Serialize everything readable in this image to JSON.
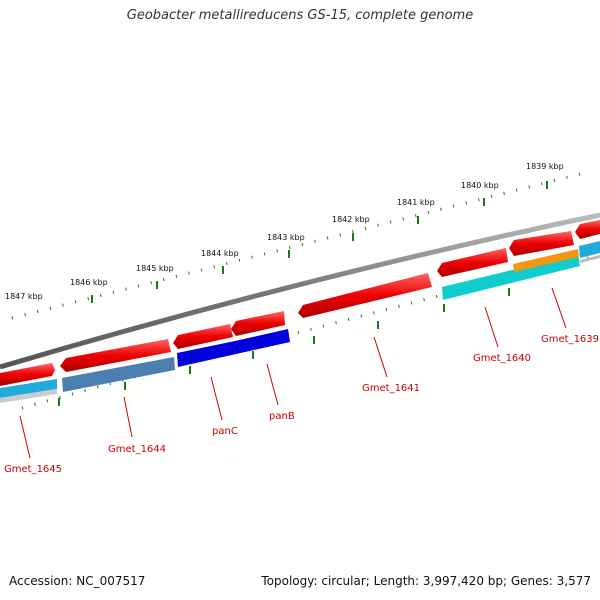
{
  "title": "Geobacter metallireducens GS-15, complete genome",
  "footer": {
    "accession": "Accession: NC_007517",
    "topology": "Topology: circular; Length: 3,997,420 bp; Genes: 3,577"
  },
  "kbp_labels": [
    "1847 kbp",
    "1846 kbp",
    "1845 kbp",
    "1844 kbp",
    "1843 kbp",
    "1842 kbp",
    "1841 kbp",
    "1840 kbp",
    "1839 kbp"
  ],
  "gene_labels": [
    "Gmet_1645",
    "Gmet_1644",
    "panC",
    "panB",
    "Gmet_1641",
    "Gmet_1640",
    "Gmet_1639"
  ],
  "colors": {
    "cds": "#ee0000",
    "backbone": "#777777",
    "tick": "#1a7a1a",
    "label": "#cc0000",
    "gene_light_blue": "#22aadd",
    "gene_steel_blue": "#4a7fb0",
    "gene_blue": "#0000dd",
    "gene_cyan": "#11cccc",
    "gene_orange": "#ee9911"
  }
}
